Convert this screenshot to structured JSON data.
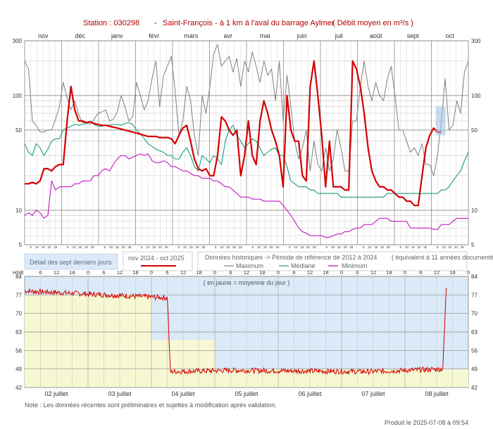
{
  "header": {
    "station": "Station : 030298",
    "separator": "-",
    "name": "Saint-François - à 1 km à l'aval du barrage Aylmer",
    "unit_note": "( Débit moyen en m³/s )"
  },
  "legend": {
    "detail_label": "Détail des sept derniers jours",
    "current_label": "nov 2024 - oct 2025",
    "hist_label": "Données historiques -> Période de référence  de 2012 à 2024",
    "hist_years": "( équivalent à 11 années documentées )",
    "max_label": "Maximum",
    "median_label": "Médiane",
    "min_label": "Minimum"
  },
  "footer": {
    "note": "Note : Les données récentes sont préliminaires et sujettes à modification après validation.",
    "produced": "Produit le 2025-07-08 à 09:54"
  },
  "colors": {
    "current": "#d40000",
    "maximum": "#808080",
    "median": "#1a9a80",
    "minimum": "#c000c0",
    "detail_blue": "#dbeaf8",
    "detail_yellow": "#f5f8d2",
    "title_red": "#b00000"
  },
  "chart_data": [
    {
      "type": "line",
      "scale": "log",
      "months": [
        "nov",
        "déc",
        "janv",
        "févr",
        "mars",
        "avr",
        "mai",
        "juin",
        "juil",
        "août",
        "sept",
        "oct"
      ],
      "day_ticks": [
        "5",
        "10",
        "15",
        "20",
        "25"
      ],
      "ytick_labels": [
        "300",
        "100",
        "50",
        "10",
        "5"
      ],
      "ylim": [
        5,
        300
      ],
      "series": [
        {
          "name": "Maximum",
          "key": "max",
          "values": [
            200,
            170,
            60,
            55,
            48,
            48,
            50,
            50,
            62,
            80,
            130,
            95,
            75,
            90,
            68,
            58,
            58,
            56,
            62,
            70,
            72,
            75,
            60,
            62,
            72,
            100,
            80,
            60,
            65,
            130,
            100,
            75,
            90,
            140,
            200,
            80,
            150,
            180,
            220,
            110,
            45,
            60,
            120,
            90,
            45,
            30,
            100,
            70,
            120,
            230,
            280,
            180,
            200,
            220,
            160,
            210,
            120,
            200,
            160,
            240,
            180,
            130,
            200,
            150,
            170,
            90,
            200,
            60,
            150,
            80,
            40,
            28,
            35,
            50,
            22,
            40,
            25,
            22,
            35,
            22,
            28,
            50,
            35,
            22,
            22,
            60,
            60,
            120,
            200,
            120,
            90,
            130,
            100,
            90,
            140,
            180,
            100,
            50,
            50,
            40,
            32,
            35,
            30,
            38,
            25,
            25,
            20,
            30,
            60,
            140,
            50,
            55,
            90,
            70,
            160,
            200
          ]
        },
        {
          "name": "Médiane",
          "key": "median",
          "values": [
            38,
            32,
            30,
            38,
            35,
            30,
            34,
            40,
            42,
            42,
            50,
            52,
            54,
            56,
            55,
            56,
            57,
            60,
            56,
            54,
            54,
            55,
            55,
            56,
            56,
            55,
            57,
            58,
            56,
            50,
            46,
            42,
            38,
            36,
            34,
            33,
            32,
            30,
            30,
            28,
            28,
            32,
            35,
            30,
            24,
            22,
            30,
            28,
            26,
            30,
            28,
            25,
            40,
            50,
            55,
            45,
            40,
            35,
            38,
            42,
            40,
            35,
            30,
            32,
            34,
            35,
            30,
            30,
            24,
            18,
            17,
            16,
            16,
            16,
            15,
            15,
            14,
            14,
            14,
            14,
            14,
            14,
            13,
            13,
            13,
            13,
            13,
            13,
            13,
            13,
            13,
            13,
            13,
            13,
            14,
            14,
            14,
            14,
            14,
            14,
            14,
            14,
            14,
            14,
            14,
            14,
            14,
            14,
            15,
            15,
            16,
            18,
            20,
            22,
            27,
            32
          ]
        },
        {
          "name": "Minimum",
          "key": "min",
          "values": [
            9,
            9.5,
            9,
            10,
            9.5,
            8.5,
            9,
            18,
            15,
            16,
            16,
            16,
            16,
            17,
            17,
            18,
            18,
            18,
            20,
            20,
            22,
            23,
            22,
            25,
            28,
            30,
            30,
            28,
            29,
            30,
            31,
            30,
            31,
            27,
            26,
            26,
            27,
            26,
            24,
            24,
            23,
            22,
            22,
            21,
            20,
            20,
            19,
            19,
            19,
            18,
            18,
            17,
            16,
            16,
            15,
            14,
            13,
            13,
            13,
            12.5,
            12.5,
            12.5,
            12,
            12,
            12,
            12,
            12,
            11,
            10,
            9,
            8,
            7,
            6.5,
            6.3,
            6,
            6,
            6,
            6,
            5.8,
            5.8,
            6,
            6.2,
            6.2,
            6.5,
            6.5,
            6.8,
            7,
            7,
            7.5,
            7.5,
            7.5,
            8,
            8.5,
            8.5,
            8.5,
            8,
            8,
            8,
            8,
            8,
            7,
            7,
            7,
            7,
            7,
            7,
            6.8,
            6.8,
            7.5,
            7.5,
            7.5,
            8,
            8.5,
            8.5,
            8.5,
            8.5
          ]
        },
        {
          "name": "nov 2024 - oct 2025",
          "key": "current",
          "values": [
            17,
            17,
            17.5,
            17,
            18,
            23,
            23,
            22,
            24,
            25,
            25,
            60,
            120,
            75,
            60,
            60,
            58,
            59,
            57,
            56,
            55,
            55,
            54,
            53,
            52,
            51,
            50,
            49,
            48,
            47,
            46,
            45,
            44,
            44,
            44,
            43,
            43,
            43,
            42,
            38,
            45,
            52,
            55,
            40,
            28,
            23,
            22,
            23,
            20,
            20,
            30,
            65,
            60,
            50,
            45,
            50,
            20,
            30,
            60,
            30,
            25,
            60,
            90,
            70,
            50,
            40,
            30,
            16,
            100,
            50,
            40,
            40,
            20,
            18,
            120,
            200,
            100,
            45,
            16,
            40,
            16,
            16,
            16,
            15,
            15,
            200,
            170,
            120,
            70,
            35,
            22,
            18,
            16,
            16,
            15,
            15,
            14,
            13,
            13,
            12,
            12,
            11,
            11,
            20,
            35,
            45,
            52,
            48,
            48
          ]
        }
      ]
    },
    {
      "type": "line",
      "ylabel": "HNE",
      "hours": [
        "6",
        "12",
        "18",
        "0",
        "6",
        "12",
        "18",
        "0",
        "6",
        "12",
        "18",
        "0",
        "6",
        "12",
        "18",
        "0",
        "6",
        "12",
        "18",
        "0",
        "6",
        "12",
        "18",
        "0",
        "6",
        "12",
        "18",
        "0",
        "6",
        "12",
        "18"
      ],
      "dates": [
        "02 juillet",
        "03 juillet",
        "04 juillet",
        "05 juillet",
        "06 juillet",
        "07 juillet",
        "08 juillet"
      ],
      "yticks": [
        84,
        77,
        70,
        63,
        56,
        49,
        42
      ],
      "ylim": [
        42,
        84
      ],
      "annotation": "( en jaune = moyenne du jour )",
      "daily_means": [
        77,
        77,
        60,
        49,
        49,
        49,
        49
      ],
      "series": [
        {
          "name": "Débit",
          "key": "detail",
          "start": [
            0,
            0,
            78.5
          ],
          "breaks": [
            [
              20,
              76
            ],
            [
              20.7,
              76
            ],
            [
              21.1,
              48
            ],
            [
              30,
              48.5
            ],
            [
              50,
              48
            ],
            [
              60.6,
              49
            ],
            [
              61.1,
              80
            ]
          ],
          "noise": 1.0
        }
      ]
    }
  ]
}
